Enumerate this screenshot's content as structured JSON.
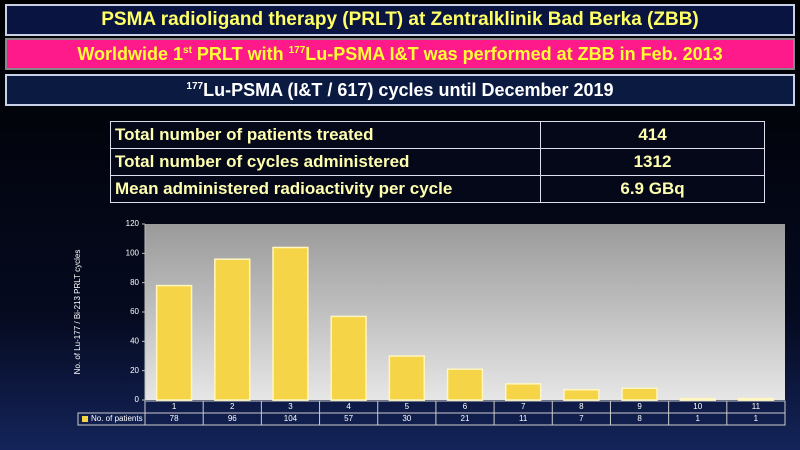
{
  "header": {
    "title": "PSMA radioligand therapy (PRLT) at Zentralklinik Bad Berka (ZBB)",
    "banner": [
      "Worldwide 1",
      "st",
      " PRLT with ",
      "177",
      "Lu-PSMA I&T was performed at ZBB in Feb. 2013"
    ],
    "subheader": [
      "177",
      "Lu-PSMA (I&T / 617) cycles until December 2019"
    ]
  },
  "table": {
    "rows": [
      [
        "Total number of patients treated",
        "414"
      ],
      [
        "Total number of cycles administered",
        "1312"
      ],
      [
        "Mean administered radioactivity per cycle",
        "6.9 GBq"
      ]
    ]
  },
  "chart_data": {
    "type": "bar",
    "y_label": "No. of Lu-177 / Bi-213  PRLT cycles",
    "categories": [
      "1",
      "2",
      "3",
      "4",
      "5",
      "6",
      "7",
      "8",
      "9",
      "10",
      "11"
    ],
    "series": [
      {
        "name": "No. of patients",
        "color": "#f5d547",
        "values": [
          78,
          96,
          104,
          57,
          30,
          21,
          11,
          7,
          8,
          1,
          1
        ]
      }
    ],
    "ylim": [
      0,
      120
    ],
    "yticks": [
      0,
      20,
      40,
      60,
      80,
      100,
      120
    ],
    "grid": false
  }
}
